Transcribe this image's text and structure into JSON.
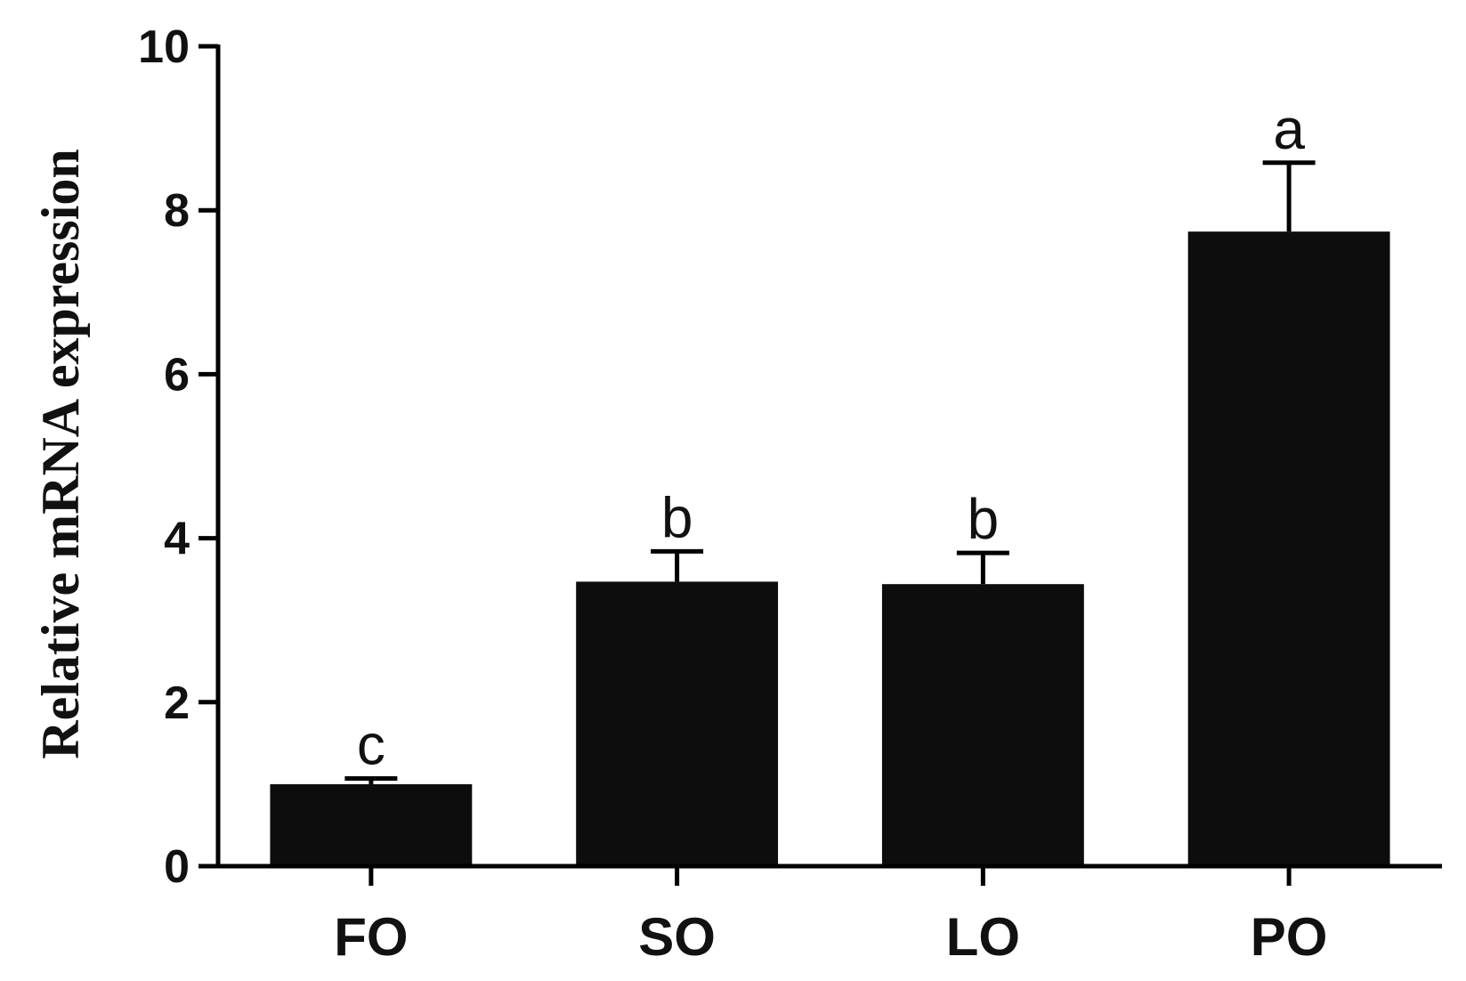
{
  "chart_data": {
    "type": "bar",
    "categories": [
      "FO",
      "SO",
      "LO",
      "PO"
    ],
    "values": [
      1.0,
      3.47,
      3.44,
      7.74
    ],
    "errors": [
      0.07,
      0.37,
      0.38,
      0.84
    ],
    "significance_labels": [
      "c",
      "b",
      "b",
      "a"
    ],
    "title": "",
    "xlabel": "",
    "ylabel": "Relative mRNA expression",
    "ylim": [
      0,
      10
    ],
    "yticks": [
      0,
      2,
      4,
      6,
      8,
      10
    ],
    "ytick_labels": [
      "0",
      "2",
      "4",
      "6",
      "8",
      "10"
    ],
    "bar_color": "#0d0d0d",
    "grid": false,
    "legend": "none"
  }
}
